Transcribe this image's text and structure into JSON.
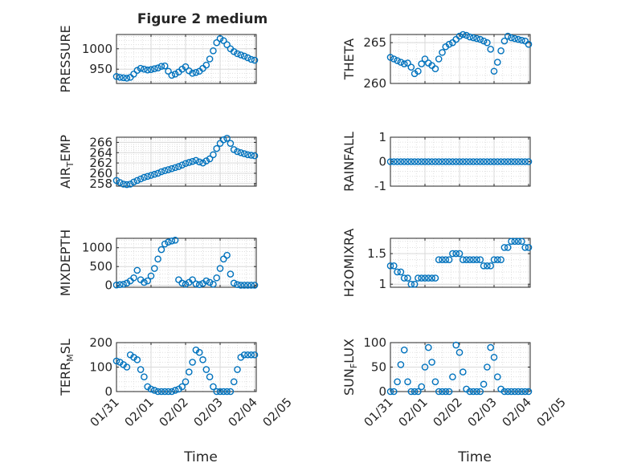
{
  "figure": {
    "title": "Figure 2 medium",
    "marker_color": "#0072BD",
    "axis_color": "#262626",
    "grid_color": "#d9d9d9"
  },
  "time_axis": {
    "ticks": [
      "01/31",
      "02/01",
      "02/02",
      "02/03",
      "02/04",
      "02/05"
    ],
    "label": "Time",
    "range_days": [
      0,
      5
    ],
    "data_range_days": [
      0,
      4
    ]
  },
  "chart_data": [
    {
      "type": "scatter",
      "ylabel": "PRESSURE",
      "ylim": [
        915,
        1035
      ],
      "yticks": [
        950,
        1000
      ],
      "grid": "on",
      "x": [
        0,
        0.1,
        0.2,
        0.3,
        0.4,
        0.5,
        0.6,
        0.7,
        0.8,
        0.9,
        1,
        1.1,
        1.2,
        1.3,
        1.4,
        1.5,
        1.6,
        1.7,
        1.8,
        1.9,
        2,
        2.1,
        2.2,
        2.3,
        2.4,
        2.5,
        2.6,
        2.7,
        2.8,
        2.9,
        3,
        3.1,
        3.2,
        3.3,
        3.4,
        3.5,
        3.6,
        3.7,
        3.8,
        3.9,
        4
      ],
      "y": [
        932,
        930,
        929,
        928,
        930,
        938,
        947,
        952,
        950,
        948,
        949,
        951,
        953,
        957,
        958,
        945,
        935,
        938,
        943,
        950,
        956,
        946,
        940,
        942,
        945,
        952,
        960,
        975,
        995,
        1015,
        1025,
        1020,
        1010,
        1000,
        993,
        988,
        985,
        982,
        978,
        974,
        972
      ]
    },
    {
      "type": "scatter",
      "ylabel": "THETA",
      "ylim": [
        260,
        266
      ],
      "yticks": [
        260,
        265
      ],
      "grid": "on",
      "x": [
        0,
        0.1,
        0.2,
        0.3,
        0.4,
        0.5,
        0.6,
        0.7,
        0.8,
        0.9,
        1,
        1.1,
        1.2,
        1.3,
        1.4,
        1.5,
        1.6,
        1.7,
        1.8,
        1.9,
        2,
        2.1,
        2.2,
        2.3,
        2.4,
        2.5,
        2.6,
        2.7,
        2.8,
        2.9,
        3,
        3.1,
        3.2,
        3.3,
        3.4,
        3.5,
        3.6,
        3.7,
        3.8,
        3.9,
        4
      ],
      "y": [
        263.2,
        263,
        262.8,
        262.6,
        262.4,
        262.5,
        262,
        261.2,
        261.5,
        262.4,
        263,
        262.5,
        262.2,
        261.8,
        263,
        263.8,
        264.5,
        264.8,
        265,
        265.4,
        265.8,
        266,
        265.9,
        265.7,
        265.6,
        265.5,
        265.4,
        265.2,
        265,
        264.2,
        261.5,
        262.6,
        264,
        265.2,
        265.8,
        265.6,
        265.5,
        265.4,
        265.3,
        265.2,
        264.8
      ]
    },
    {
      "type": "scatter",
      "ylabel": "AIR_TEMP",
      "ylim": [
        257.5,
        267
      ],
      "yticks": [
        258,
        260,
        262,
        264,
        266
      ],
      "grid": "on",
      "x": [
        0,
        0.1,
        0.2,
        0.3,
        0.4,
        0.5,
        0.6,
        0.7,
        0.8,
        0.9,
        1,
        1.1,
        1.2,
        1.3,
        1.4,
        1.5,
        1.6,
        1.7,
        1.8,
        1.9,
        2,
        2.1,
        2.2,
        2.3,
        2.4,
        2.5,
        2.6,
        2.7,
        2.8,
        2.9,
        3,
        3.1,
        3.2,
        3.3,
        3.4,
        3.5,
        3.6,
        3.7,
        3.8,
        3.9,
        4
      ],
      "y": [
        258.6,
        258.2,
        257.9,
        257.8,
        257.9,
        258.3,
        258.6,
        258.9,
        259.2,
        259.4,
        259.6,
        259.8,
        260,
        260.3,
        260.5,
        260.7,
        260.9,
        261.1,
        261.3,
        261.6,
        261.9,
        262.1,
        262.3,
        262.5,
        262.2,
        262,
        262.4,
        262.8,
        263.6,
        264.8,
        265.8,
        266.5,
        266.8,
        265.8,
        264.6,
        264.2,
        264,
        263.8,
        263.6,
        263.5,
        263.4
      ]
    },
    {
      "type": "scatter",
      "ylabel": "RAINFALL",
      "ylim": [
        -1,
        1
      ],
      "yticks": [
        -1,
        0,
        1
      ],
      "grid": "on",
      "x": [
        0,
        0.1,
        0.2,
        0.3,
        0.4,
        0.5,
        0.6,
        0.7,
        0.8,
        0.9,
        1,
        1.1,
        1.2,
        1.3,
        1.4,
        1.5,
        1.6,
        1.7,
        1.8,
        1.9,
        2,
        2.1,
        2.2,
        2.3,
        2.4,
        2.5,
        2.6,
        2.7,
        2.8,
        2.9,
        3,
        3.1,
        3.2,
        3.3,
        3.4,
        3.5,
        3.6,
        3.7,
        3.8,
        3.9,
        4
      ],
      "y": [
        0,
        0,
        0,
        0,
        0,
        0,
        0,
        0,
        0,
        0,
        0,
        0,
        0,
        0,
        0,
        0,
        0,
        0,
        0,
        0,
        0,
        0,
        0,
        0,
        0,
        0,
        0,
        0,
        0,
        0,
        0,
        0,
        0,
        0,
        0,
        0,
        0,
        0,
        0,
        0,
        0
      ]
    },
    {
      "type": "scatter",
      "ylabel": "MIXDEPTH",
      "ylim": [
        -50,
        1250
      ],
      "yticks": [
        0,
        500,
        1000
      ],
      "grid": "on",
      "x": [
        0,
        0.1,
        0.2,
        0.3,
        0.4,
        0.5,
        0.6,
        0.7,
        0.8,
        0.9,
        1,
        1.1,
        1.2,
        1.3,
        1.4,
        1.5,
        1.6,
        1.7,
        1.8,
        1.9,
        2,
        2.1,
        2.2,
        2.3,
        2.4,
        2.5,
        2.6,
        2.7,
        2.8,
        2.9,
        3,
        3.1,
        3.2,
        3.3,
        3.4,
        3.5,
        3.6,
        3.7,
        3.8,
        3.9,
        4
      ],
      "y": [
        10,
        20,
        30,
        60,
        120,
        200,
        400,
        150,
        80,
        120,
        250,
        450,
        700,
        950,
        1100,
        1150,
        1180,
        1200,
        150,
        60,
        30,
        80,
        150,
        40,
        20,
        50,
        120,
        80,
        30,
        200,
        450,
        700,
        800,
        300,
        60,
        20,
        5,
        5,
        5,
        5,
        5
      ]
    },
    {
      "type": "scatter",
      "ylabel": "H2OMIXRA",
      "ylim": [
        0.95,
        1.75
      ],
      "yticks": [
        1,
        1.5
      ],
      "grid": "on",
      "x": [
        0,
        0.1,
        0.2,
        0.3,
        0.4,
        0.5,
        0.6,
        0.7,
        0.8,
        0.9,
        1,
        1.1,
        1.2,
        1.3,
        1.4,
        1.5,
        1.6,
        1.7,
        1.8,
        1.9,
        2,
        2.1,
        2.2,
        2.3,
        2.4,
        2.5,
        2.6,
        2.7,
        2.8,
        2.9,
        3,
        3.1,
        3.2,
        3.3,
        3.4,
        3.5,
        3.6,
        3.7,
        3.8,
        3.9,
        4
      ],
      "y": [
        1.3,
        1.3,
        1.2,
        1.2,
        1.1,
        1.1,
        1,
        1,
        1.1,
        1.1,
        1.1,
        1.1,
        1.1,
        1.1,
        1.4,
        1.4,
        1.4,
        1.4,
        1.5,
        1.5,
        1.5,
        1.4,
        1.4,
        1.4,
        1.4,
        1.4,
        1.4,
        1.3,
        1.3,
        1.3,
        1.4,
        1.4,
        1.4,
        1.6,
        1.6,
        1.7,
        1.7,
        1.7,
        1.7,
        1.6,
        1.6
      ]
    },
    {
      "type": "scatter",
      "ylabel": "TERR_MSL",
      "ylim": [
        0,
        200
      ],
      "yticks": [
        0,
        100,
        200
      ],
      "grid": "on",
      "x": [
        0,
        0.1,
        0.2,
        0.3,
        0.4,
        0.5,
        0.6,
        0.7,
        0.8,
        0.9,
        1,
        1.1,
        1.2,
        1.3,
        1.4,
        1.5,
        1.6,
        1.7,
        1.8,
        1.9,
        2,
        2.1,
        2.2,
        2.3,
        2.4,
        2.5,
        2.6,
        2.7,
        2.8,
        2.9,
        3,
        3.1,
        3.2,
        3.3,
        3.4,
        3.5,
        3.6,
        3.7,
        3.8,
        3.9,
        4
      ],
      "y": [
        125,
        120,
        110,
        100,
        150,
        140,
        130,
        90,
        60,
        20,
        10,
        5,
        0,
        0,
        0,
        0,
        0,
        5,
        10,
        20,
        40,
        80,
        120,
        170,
        160,
        130,
        90,
        60,
        20,
        0,
        0,
        0,
        0,
        0,
        40,
        90,
        140,
        150,
        150,
        150,
        150
      ]
    },
    {
      "type": "scatter",
      "ylabel": "SUN_FLUX",
      "ylim": [
        0,
        100
      ],
      "yticks": [
        0,
        50,
        100
      ],
      "grid": "on",
      "x": [
        0,
        0.1,
        0.2,
        0.3,
        0.4,
        0.5,
        0.6,
        0.7,
        0.8,
        0.9,
        1,
        1.1,
        1.2,
        1.3,
        1.4,
        1.5,
        1.6,
        1.7,
        1.8,
        1.9,
        2,
        2.1,
        2.2,
        2.3,
        2.4,
        2.5,
        2.6,
        2.7,
        2.8,
        2.9,
        3,
        3.1,
        3.2,
        3.3,
        3.4,
        3.5,
        3.6,
        3.7,
        3.8,
        3.9,
        4
      ],
      "y": [
        0,
        0,
        20,
        55,
        85,
        20,
        0,
        0,
        0,
        10,
        50,
        90,
        60,
        20,
        0,
        0,
        0,
        0,
        30,
        95,
        80,
        40,
        5,
        0,
        0,
        0,
        0,
        15,
        50,
        90,
        70,
        30,
        5,
        0,
        0,
        0,
        0,
        0,
        0,
        0,
        0
      ]
    }
  ]
}
